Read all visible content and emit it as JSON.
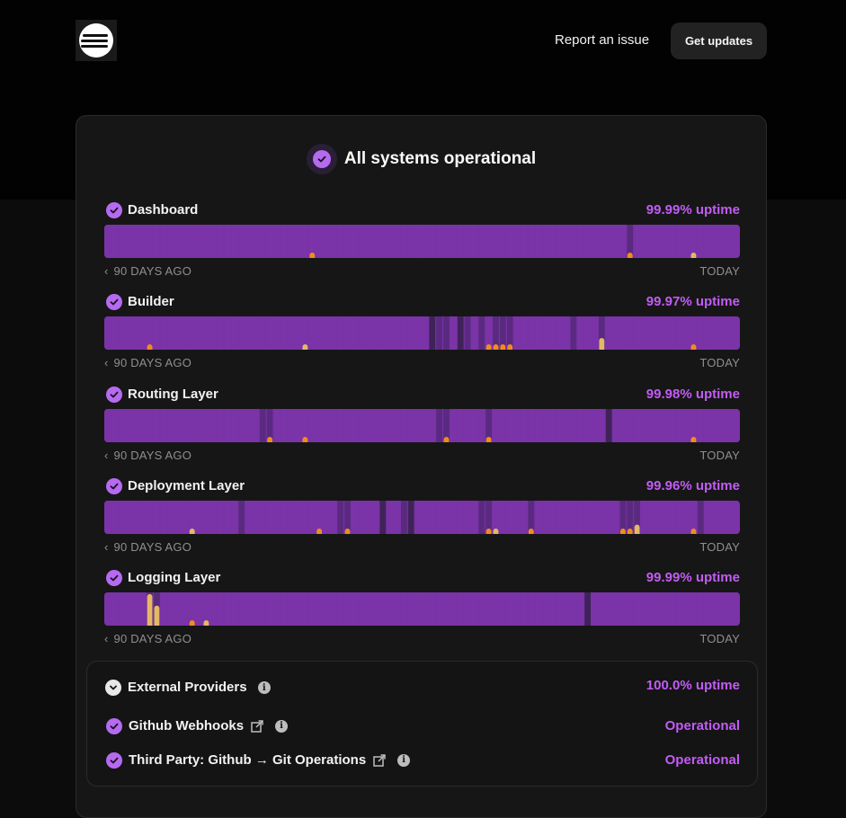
{
  "header": {
    "report_label": "Report an issue",
    "updates_label": "Get updates"
  },
  "summary": {
    "title": "All systems operational"
  },
  "colors": {
    "bar_operational": "#7b33a8",
    "bar_dark": "#5a2a80",
    "bar_darker": "#3f2358",
    "incident_minor": "#f08c1e",
    "incident_degraded": "#e3b866",
    "accent_text": "#c25cf5"
  },
  "bar_legend": {
    "left": "90 DAYS AGO",
    "right": "TODAY"
  },
  "components": [
    {
      "name": "Dashboard",
      "uptime": "99.99% uptime",
      "days": 90,
      "events": [
        {
          "day": 29,
          "type": "minor",
          "level": 0.15
        },
        {
          "day": 74,
          "type": "minor",
          "level": 0.15
        },
        {
          "day": 83,
          "type": "degraded",
          "level": 0.15
        }
      ],
      "shaded": [
        {
          "day": 74,
          "tone": "dark"
        }
      ]
    },
    {
      "name": "Builder",
      "uptime": "99.97% uptime",
      "days": 90,
      "events": [
        {
          "day": 6,
          "type": "minor",
          "level": 0.15
        },
        {
          "day": 28,
          "type": "degraded",
          "level": 0.15
        },
        {
          "day": 54,
          "type": "minor",
          "level": 0.15
        },
        {
          "day": 55,
          "type": "minor",
          "level": 0.15
        },
        {
          "day": 56,
          "type": "minor",
          "level": 0.15
        },
        {
          "day": 57,
          "type": "minor",
          "level": 0.15
        },
        {
          "day": 70,
          "type": "degraded",
          "level": 0.35
        },
        {
          "day": 83,
          "type": "minor",
          "level": 0.15
        }
      ],
      "shaded": [
        {
          "day": 46,
          "tone": "darker"
        },
        {
          "day": 47,
          "tone": "dark"
        },
        {
          "day": 48,
          "tone": "dark"
        },
        {
          "day": 50,
          "tone": "darker"
        },
        {
          "day": 51,
          "tone": "dark"
        },
        {
          "day": 53,
          "tone": "dark"
        },
        {
          "day": 55,
          "tone": "dark"
        },
        {
          "day": 56,
          "tone": "dark"
        },
        {
          "day": 57,
          "tone": "dark"
        },
        {
          "day": 66,
          "tone": "dark"
        },
        {
          "day": 70,
          "tone": "dark"
        }
      ]
    },
    {
      "name": "Routing Layer",
      "uptime": "99.98% uptime",
      "days": 90,
      "events": [
        {
          "day": 23,
          "type": "minor",
          "level": 0.15
        },
        {
          "day": 28,
          "type": "minor",
          "level": 0.15
        },
        {
          "day": 48,
          "type": "minor",
          "level": 0.15
        },
        {
          "day": 54,
          "type": "minor",
          "level": 0.15
        },
        {
          "day": 83,
          "type": "minor",
          "level": 0.15
        }
      ],
      "shaded": [
        {
          "day": 22,
          "tone": "dark"
        },
        {
          "day": 23,
          "tone": "dark"
        },
        {
          "day": 47,
          "tone": "dark"
        },
        {
          "day": 48,
          "tone": "dark"
        },
        {
          "day": 54,
          "tone": "dark"
        },
        {
          "day": 71,
          "tone": "darker"
        }
      ]
    },
    {
      "name": "Deployment Layer",
      "uptime": "99.96% uptime",
      "days": 90,
      "events": [
        {
          "day": 12,
          "type": "degraded",
          "level": 0.15
        },
        {
          "day": 30,
          "type": "minor",
          "level": 0.15
        },
        {
          "day": 34,
          "type": "minor",
          "level": 0.15
        },
        {
          "day": 54,
          "type": "minor",
          "level": 0.15
        },
        {
          "day": 55,
          "type": "degraded",
          "level": 0.15
        },
        {
          "day": 60,
          "type": "minor",
          "level": 0.15
        },
        {
          "day": 73,
          "type": "minor",
          "level": 0.15
        },
        {
          "day": 74,
          "type": "minor",
          "level": 0.15
        },
        {
          "day": 75,
          "type": "degraded",
          "level": 0.28
        },
        {
          "day": 83,
          "type": "minor",
          "level": 0.15
        }
      ],
      "shaded": [
        {
          "day": 19,
          "tone": "dark"
        },
        {
          "day": 33,
          "tone": "dark"
        },
        {
          "day": 34,
          "tone": "dark"
        },
        {
          "day": 39,
          "tone": "darker"
        },
        {
          "day": 42,
          "tone": "dark"
        },
        {
          "day": 43,
          "tone": "darker"
        },
        {
          "day": 53,
          "tone": "dark"
        },
        {
          "day": 54,
          "tone": "dark"
        },
        {
          "day": 60,
          "tone": "dark"
        },
        {
          "day": 73,
          "tone": "dark"
        },
        {
          "day": 74,
          "tone": "dark"
        },
        {
          "day": 75,
          "tone": "dark"
        },
        {
          "day": 84,
          "tone": "dark"
        }
      ]
    },
    {
      "name": "Logging Layer",
      "uptime": "99.99% uptime",
      "days": 90,
      "events": [
        {
          "day": 6,
          "type": "degraded",
          "level": 0.95
        },
        {
          "day": 7,
          "type": "degraded",
          "level": 0.6
        },
        {
          "day": 12,
          "type": "minor",
          "level": 0.15
        },
        {
          "day": 14,
          "type": "degraded",
          "level": 0.15
        }
      ],
      "shaded": [
        {
          "day": 6,
          "tone": "dark"
        },
        {
          "day": 7,
          "tone": "dark"
        },
        {
          "day": 68,
          "tone": "darker"
        }
      ]
    }
  ],
  "external": {
    "title": "External Providers",
    "uptime": "100.0% uptime",
    "providers": [
      {
        "name": "Github Webhooks",
        "status": "Operational"
      },
      {
        "name": "Third Party: Github → Git Operations",
        "status": "Operational"
      }
    ]
  }
}
